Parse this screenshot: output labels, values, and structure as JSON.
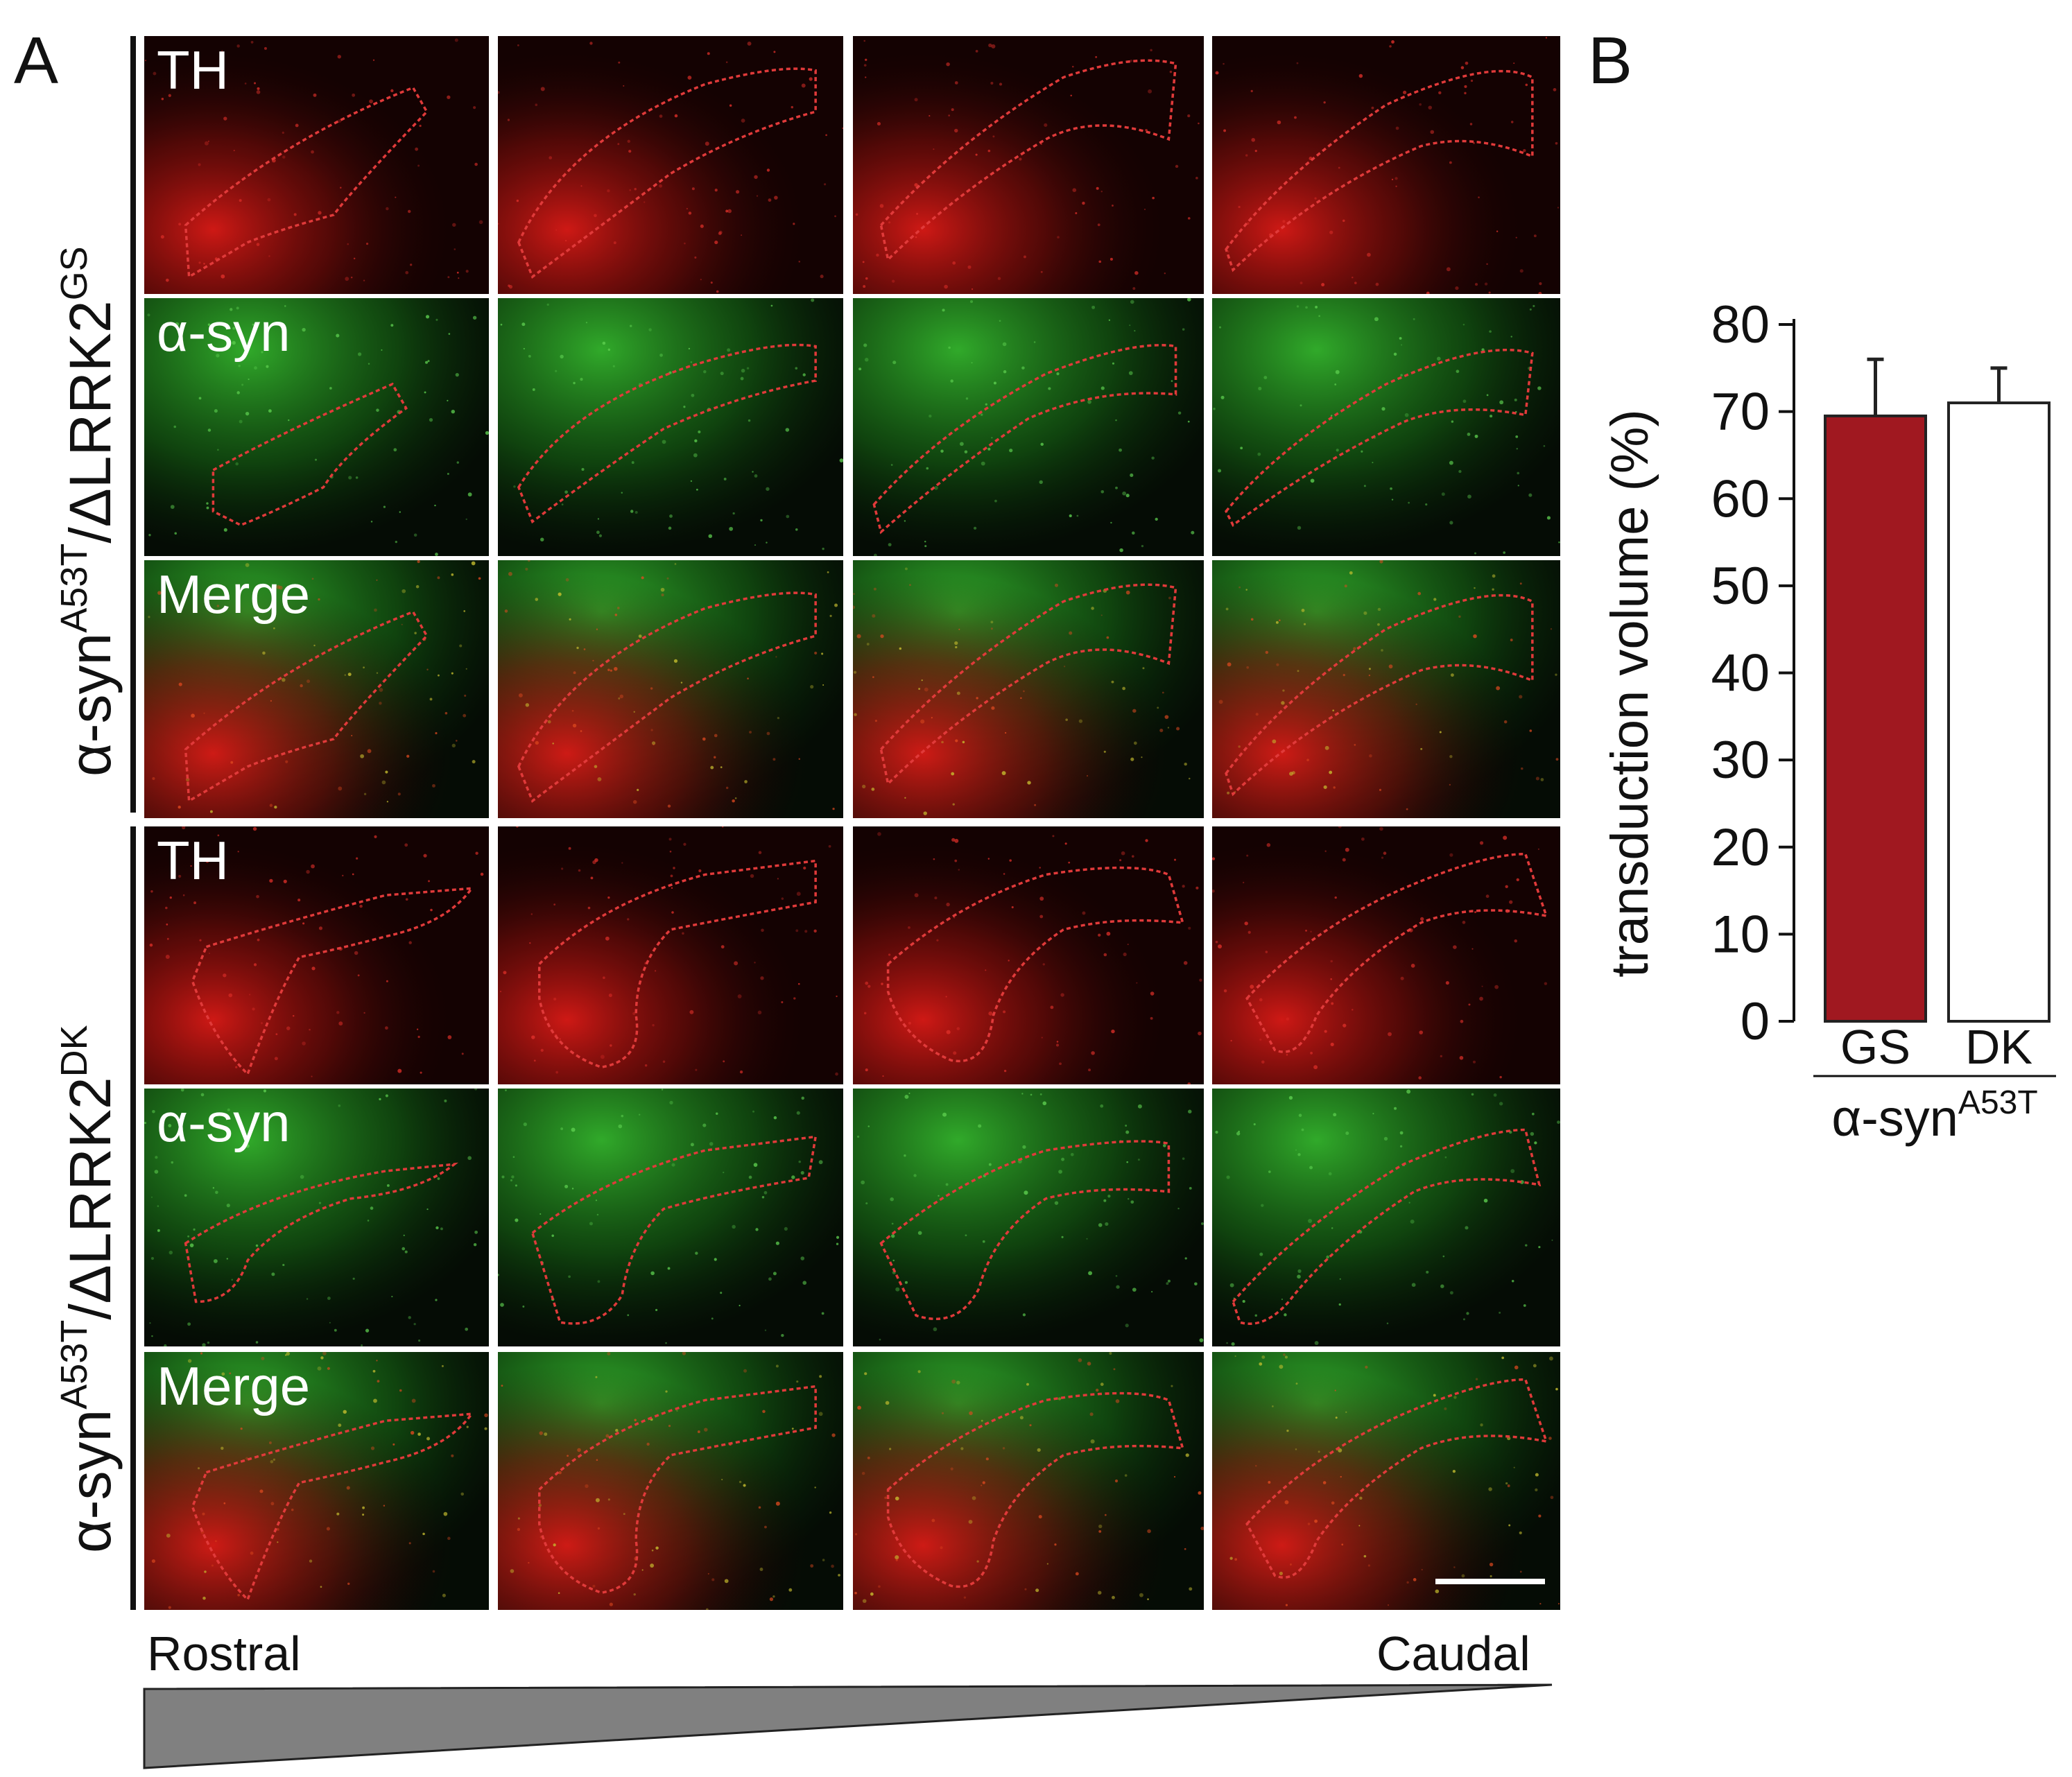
{
  "figure": {
    "panel_a_letter": "A",
    "panel_b_letter": "B",
    "group_gs": {
      "label_main": "α-syn",
      "label_sup1": "A53T",
      "label_mid": "/ΔLRRK2",
      "label_sup2": "GS"
    },
    "group_dk": {
      "label_main": "α-syn",
      "label_sup1": "A53T",
      "label_mid": "/ΔLRRK2",
      "label_sup2": "DK"
    },
    "row_labels": [
      "TH",
      "α-syn",
      "Merge",
      "TH",
      "α-syn",
      "Merge"
    ],
    "rostral_label": "Rostral",
    "caudal_label": "Caudal"
  },
  "colors": {
    "red_stain": "#e0201c",
    "green_stain": "#2fae2a",
    "outline": "#e03a3a",
    "bar_gs": "#a01820",
    "bar_dk": "#ffffff",
    "wedge": "#808080"
  },
  "chart_data": {
    "type": "bar",
    "categories": [
      "GS",
      "DK"
    ],
    "values": [
      69.5,
      71
    ],
    "errors": [
      6.5,
      4
    ],
    "ylabel": "transduction volume (%)",
    "ylim": [
      0,
      80
    ],
    "yticks": [
      0,
      10,
      20,
      30,
      40,
      50,
      60,
      70,
      80
    ],
    "group_label_main": "α-syn",
    "group_label_sup": "A53T"
  }
}
